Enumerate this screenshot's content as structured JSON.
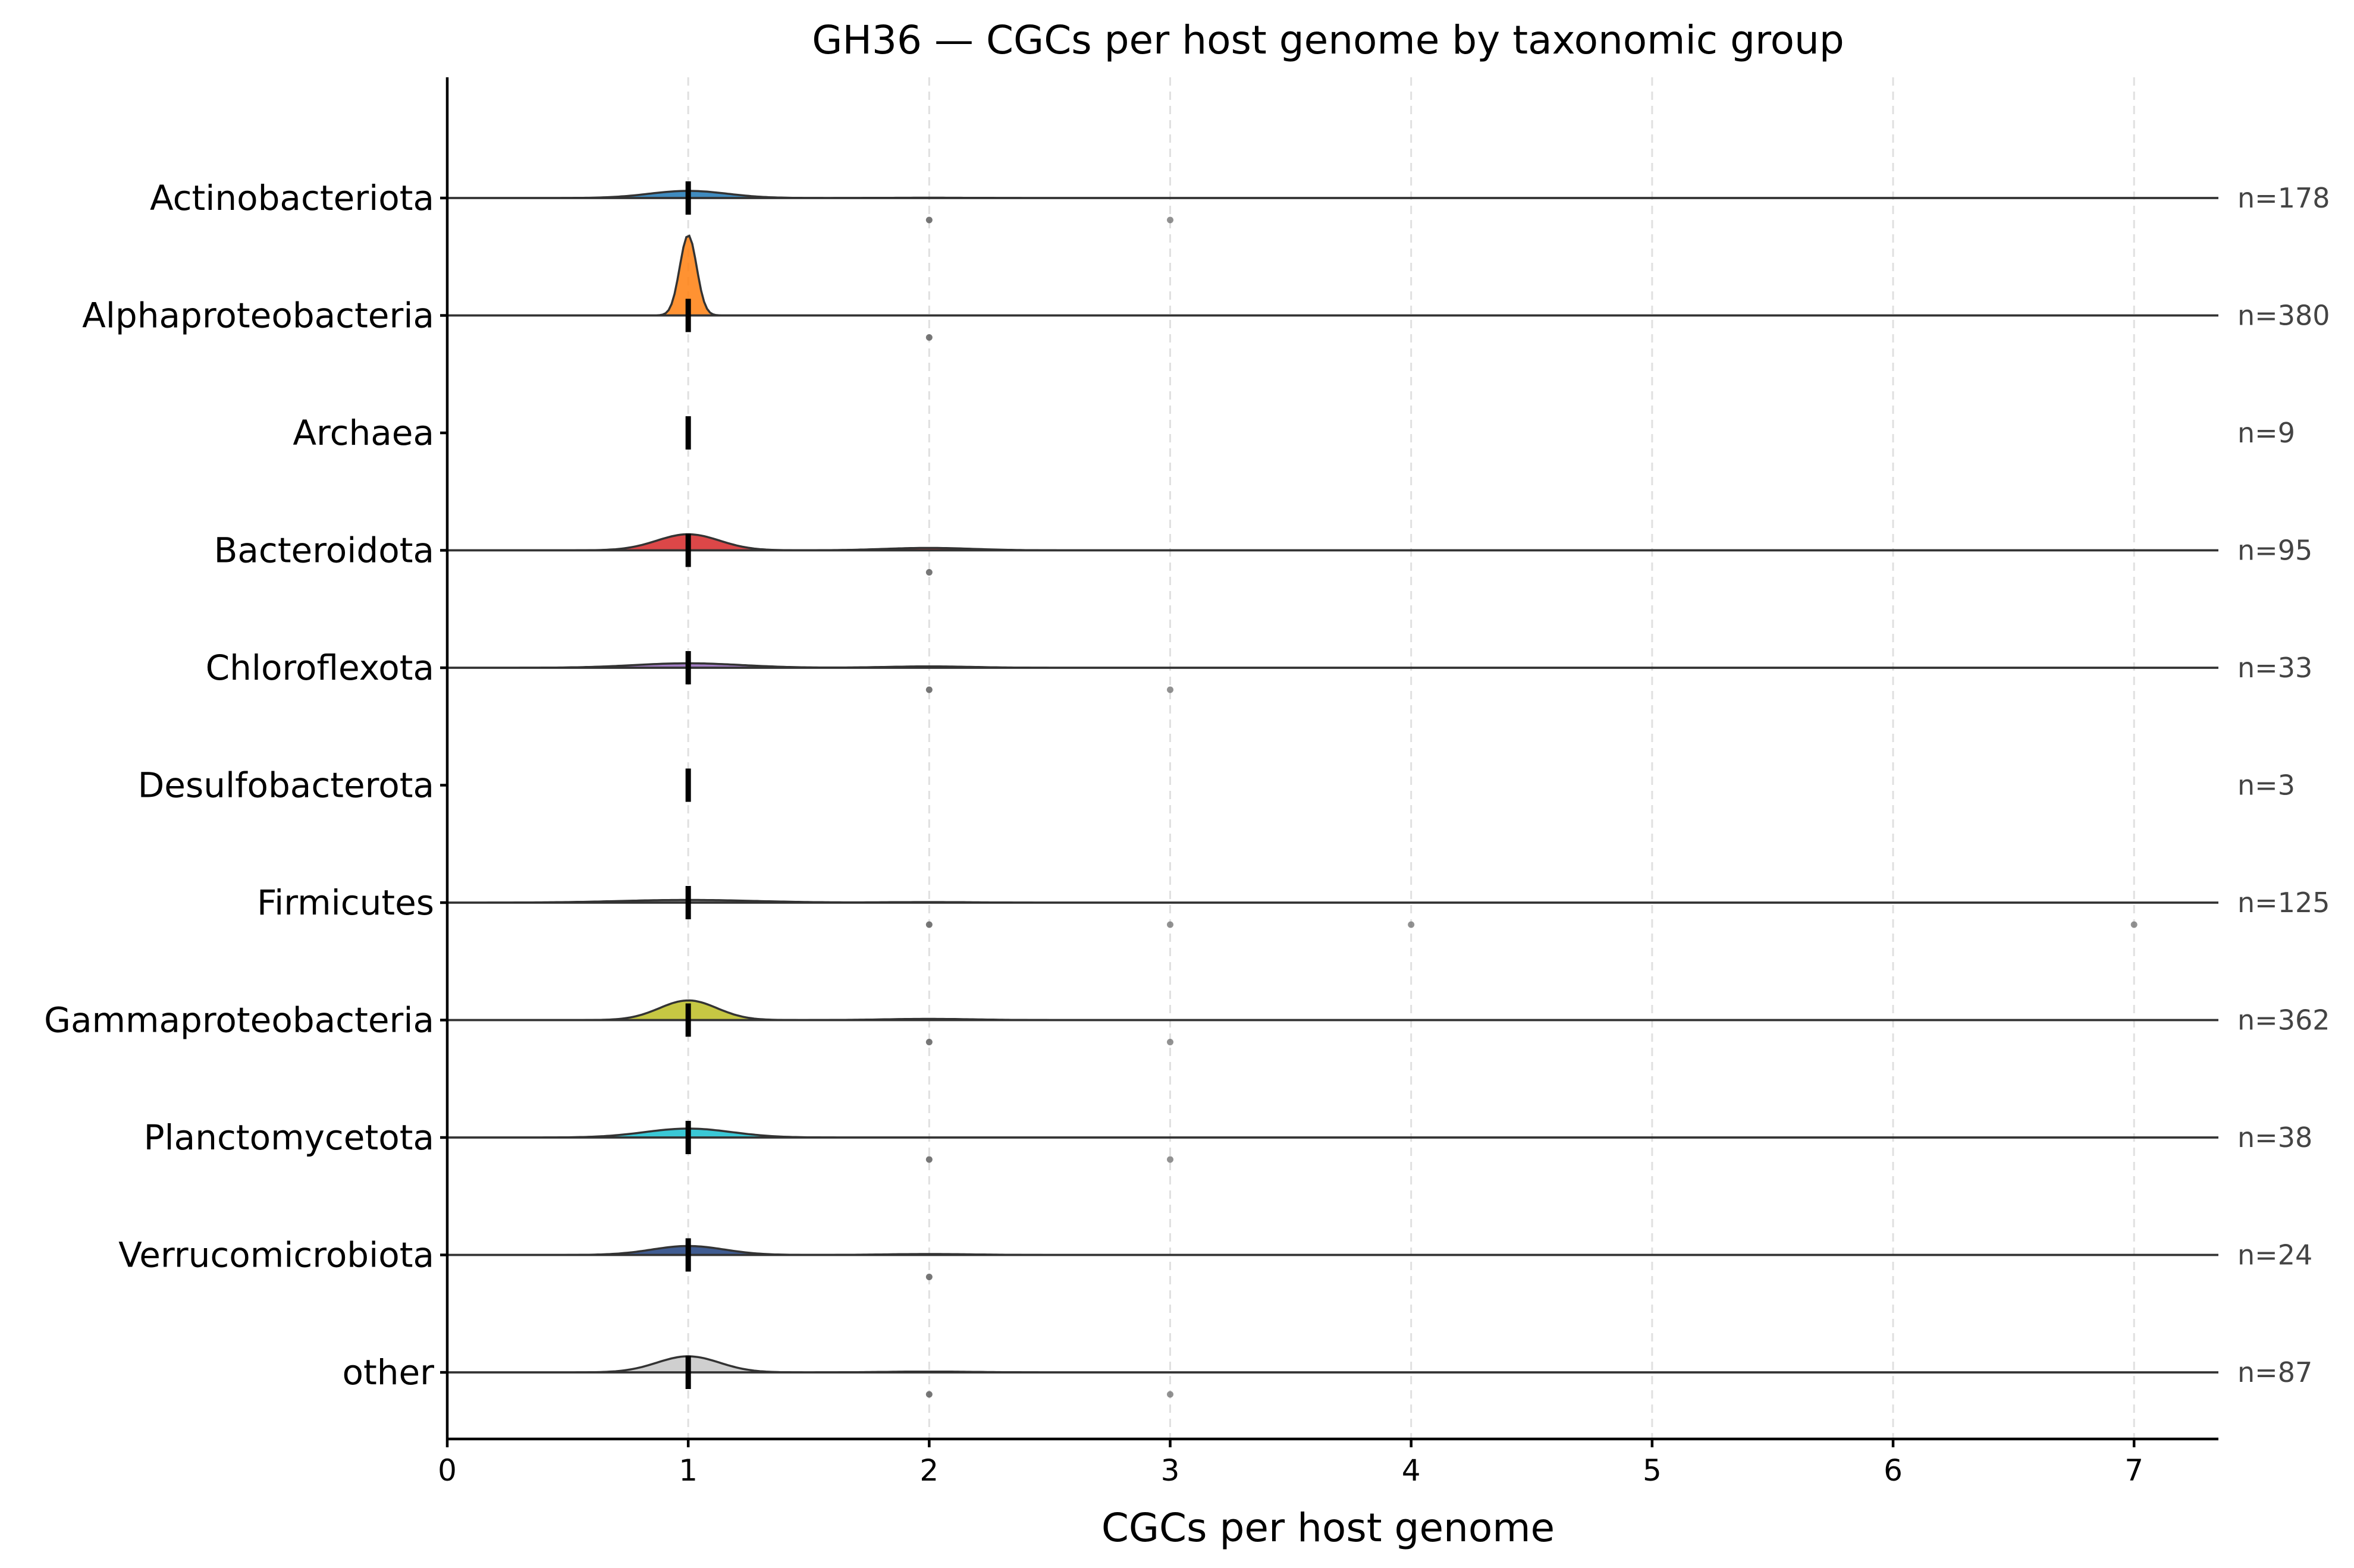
{
  "chart_data": {
    "type": "ridgeline",
    "title": "GH36 — CGCs per host genome by taxonomic group",
    "xlabel": "CGCs per host genome",
    "ylabel": "",
    "xlim": [
      0,
      7.35
    ],
    "xticks": [
      "0",
      "1",
      "2",
      "3",
      "4",
      "5",
      "6",
      "7"
    ],
    "grid": "vertical dashed",
    "groups": [
      {
        "name": "Actinobacteriota",
        "n_label": "n=178",
        "color": "#1f77b4",
        "median": 1,
        "outliers": [
          2,
          3
        ],
        "peak": 0.08,
        "bandwidth": 0.16,
        "tail_weight": 0.04
      },
      {
        "name": "Alphaproteobacteria",
        "n_label": "n=380",
        "color": "#ff7f0e",
        "median": 1,
        "outliers": [
          2
        ],
        "peak": 0.9,
        "bandwidth": 0.035,
        "tail_weight": 0.0
      },
      {
        "name": "Archaea",
        "n_label": "n=9",
        "color": "#8c8c8c",
        "median": 1,
        "outliers": [],
        "peak": 0.0,
        "bandwidth": 0.0,
        "tail_weight": 0.0
      },
      {
        "name": "Bacteroidota",
        "n_label": "n=95",
        "color": "#d62728",
        "median": 1,
        "outliers": [
          2
        ],
        "peak": 0.18,
        "bandwidth": 0.13,
        "tail_weight": 0.15
      },
      {
        "name": "Chloroflexota",
        "n_label": "n=33",
        "color": "#9467bd",
        "median": 1,
        "outliers": [
          2,
          3
        ],
        "peak": 0.05,
        "bandwidth": 0.22,
        "tail_weight": 0.3
      },
      {
        "name": "Desulfobacterota",
        "n_label": "n=3",
        "color": "#8c564b",
        "median": 1,
        "outliers": [],
        "peak": 0.0,
        "bandwidth": 0.0,
        "tail_weight": 0.0
      },
      {
        "name": "Firmicutes",
        "n_label": "n=125",
        "color": "#7f7f7f",
        "median": 1,
        "outliers": [
          2,
          3,
          4,
          7
        ],
        "peak": 0.03,
        "bandwidth": 0.28,
        "tail_weight": 0.2
      },
      {
        "name": "Gammaproteobacteria",
        "n_label": "n=362",
        "color": "#bcbd22",
        "median": 1,
        "outliers": [
          2,
          3
        ],
        "peak": 0.22,
        "bandwidth": 0.12,
        "tail_weight": 0.06
      },
      {
        "name": "Planctomycetota",
        "n_label": "n=38",
        "color": "#17becf",
        "median": 1,
        "outliers": [
          2,
          3
        ],
        "peak": 0.1,
        "bandwidth": 0.18,
        "tail_weight": 0.0
      },
      {
        "name": "Verrucomicrobiota",
        "n_label": "n=24",
        "color": "#1f3f7f",
        "median": 1,
        "outliers": [
          2
        ],
        "peak": 0.1,
        "bandwidth": 0.15,
        "tail_weight": 0.1
      },
      {
        "name": "other",
        "n_label": "n=87",
        "color": "#c7c7c7",
        "median": 1,
        "outliers": [
          2,
          3
        ],
        "peak": 0.18,
        "bandwidth": 0.13,
        "tail_weight": 0.05
      }
    ]
  }
}
